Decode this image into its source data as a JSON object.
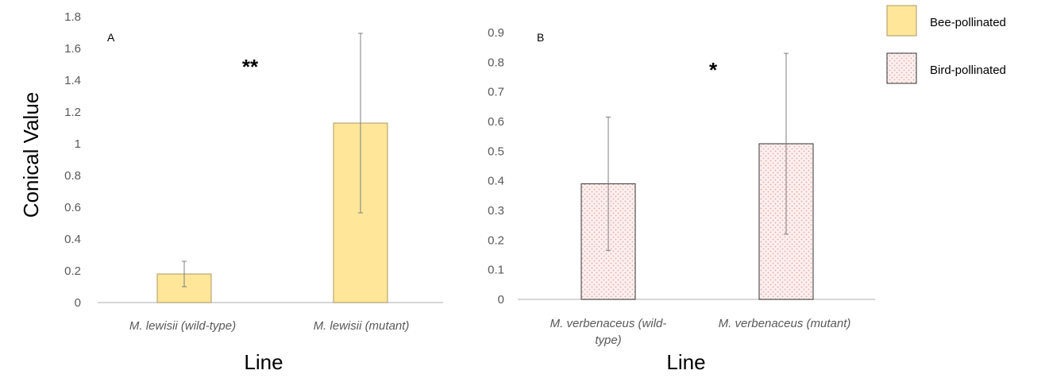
{
  "chart_data": [
    {
      "type": "bar",
      "panel_label": "A",
      "categories": [
        "M. lewisii (wild-type)",
        "M. lewisii (mutant)"
      ],
      "series": [
        {
          "name": "Bee-pollinated",
          "values": [
            0.18,
            1.13
          ],
          "error": [
            0.08,
            0.565
          ],
          "color": "#FFE699"
        }
      ],
      "ylabel": "Conical Value",
      "xlabel": "Line",
      "ylim": [
        0,
        1.8
      ],
      "yticks": [
        "0",
        "0.2",
        "0.4",
        "0.6",
        "0.8",
        "1",
        "1.2",
        "1.4",
        "1.6",
        "1.8"
      ],
      "significance": "**",
      "grid": false
    },
    {
      "type": "bar",
      "panel_label": "B",
      "categories": [
        "M. verbenaceus (wild-type)",
        "M. verbenaceus (mutant)"
      ],
      "category_lines": [
        [
          "M. verbenaceus (wild-",
          "type)"
        ],
        [
          "M. verbenaceus (mutant)"
        ]
      ],
      "series": [
        {
          "name": "Bird-pollinated",
          "values": [
            0.39,
            0.525
          ],
          "error": [
            0.225,
            0.305
          ],
          "color": "#F7D6D6",
          "pattern": "dotted"
        }
      ],
      "xlabel": "Line",
      "ylim": [
        0,
        0.9
      ],
      "yticks": [
        "0",
        "0.1",
        "0.2",
        "0.3",
        "0.4",
        "0.5",
        "0.6",
        "0.7",
        "0.8",
        "0.9"
      ],
      "significance": "*",
      "grid": false
    }
  ],
  "legend": {
    "placement": "top-right",
    "items": [
      {
        "label": "Bee-pollinated",
        "color": "#FFE699"
      },
      {
        "label": "Bird-pollinated",
        "color": "#F7D6D6",
        "pattern": "dotted"
      }
    ]
  }
}
